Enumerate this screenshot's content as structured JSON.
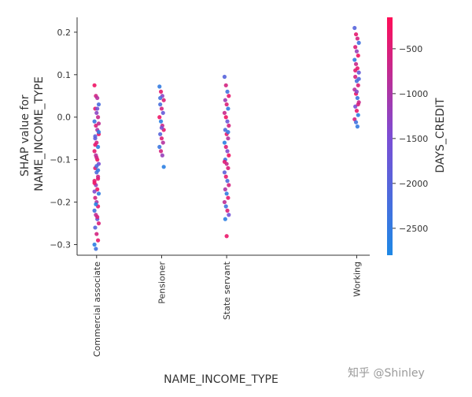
{
  "chart_data": {
    "type": "scatter",
    "title": "",
    "xlabel": "NAME_INCOME_TYPE",
    "ylabel_lines": [
      "SHAP value for",
      "NAME_INCOME_TYPE"
    ],
    "categories": [
      "Commercial associate",
      "Pensioner",
      "State servant",
      "Working"
    ],
    "category_positions": [
      0,
      1,
      2,
      4
    ],
    "xlim": [
      -0.3,
      4.2
    ],
    "ylim": [
      -0.325,
      0.235
    ],
    "yticks": [
      -0.3,
      -0.2,
      -0.1,
      0.0,
      0.1,
      0.2
    ],
    "ytick_labels": [
      "−0.3",
      "−0.2",
      "−0.1",
      "0.0",
      "0.1",
      "0.2"
    ],
    "grid": false,
    "colorbar": {
      "label": "DAYS_CREDIT",
      "range": [
        -2800,
        -150
      ],
      "ticks": [
        -500,
        -1000,
        -1500,
        -2000,
        -2500
      ],
      "tick_labels": [
        "−500",
        "−1000",
        "−1500",
        "−2000",
        "−2500"
      ],
      "colors": [
        "#1e88e5",
        "#7c4dd4",
        "#ff0d57"
      ]
    },
    "series": [
      {
        "category": "Commercial associate",
        "points": [
          {
            "y": 0.075,
            "c": -300
          },
          {
            "y": 0.05,
            "c": -600
          },
          {
            "y": 0.045,
            "c": -900
          },
          {
            "y": 0.03,
            "c": -2200
          },
          {
            "y": 0.02,
            "c": -400
          },
          {
            "y": 0.01,
            "c": -1300
          },
          {
            "y": 0.0,
            "c": -700
          },
          {
            "y": -0.01,
            "c": -2400
          },
          {
            "y": -0.02,
            "c": -500
          },
          {
            "y": -0.03,
            "c": -1000
          },
          {
            "y": -0.04,
            "c": -300
          },
          {
            "y": -0.05,
            "c": -1800
          },
          {
            "y": -0.06,
            "c": -600
          },
          {
            "y": -0.07,
            "c": -2600
          },
          {
            "y": -0.08,
            "c": -400
          },
          {
            "y": -0.09,
            "c": -900
          },
          {
            "y": -0.1,
            "c": -300
          },
          {
            "y": -0.11,
            "c": -1500
          },
          {
            "y": -0.12,
            "c": -500
          },
          {
            "y": -0.13,
            "c": -2100
          },
          {
            "y": -0.14,
            "c": -700
          },
          {
            "y": -0.15,
            "c": -400
          },
          {
            "y": -0.16,
            "c": -1200
          },
          {
            "y": -0.17,
            "c": -300
          },
          {
            "y": -0.18,
            "c": -2500
          },
          {
            "y": -0.19,
            "c": -600
          },
          {
            "y": -0.2,
            "c": -1000
          },
          {
            "y": -0.21,
            "c": -400
          },
          {
            "y": -0.22,
            "c": -2300
          },
          {
            "y": -0.23,
            "c": -800
          },
          {
            "y": -0.24,
            "c": -1700
          },
          {
            "y": -0.25,
            "c": -500
          },
          {
            "y": -0.26,
            "c": -2000
          },
          {
            "y": -0.275,
            "c": -600
          },
          {
            "y": -0.29,
            "c": -400
          },
          {
            "y": -0.3,
            "c": -2600
          },
          {
            "y": -0.31,
            "c": -2300
          },
          {
            "y": 0.02,
            "c": -1600
          },
          {
            "y": -0.035,
            "c": -2500
          },
          {
            "y": -0.065,
            "c": -350
          },
          {
            "y": -0.115,
            "c": -2200
          },
          {
            "y": -0.145,
            "c": -450
          },
          {
            "y": -0.175,
            "c": -1400
          },
          {
            "y": -0.205,
            "c": -2700
          },
          {
            "y": -0.235,
            "c": -550
          },
          {
            "y": -0.015,
            "c": -800
          },
          {
            "y": -0.045,
            "c": -1900
          },
          {
            "y": -0.095,
            "c": -650
          },
          {
            "y": -0.125,
            "c": -2400
          },
          {
            "y": -0.155,
            "c": -300
          }
        ]
      },
      {
        "category": "Pensioner",
        "points": [
          {
            "y": 0.072,
            "c": -2500
          },
          {
            "y": 0.06,
            "c": -400
          },
          {
            "y": 0.05,
            "c": -1300
          },
          {
            "y": 0.04,
            "c": -500
          },
          {
            "y": 0.03,
            "c": -2200
          },
          {
            "y": 0.02,
            "c": -600
          },
          {
            "y": 0.01,
            "c": -1800
          },
          {
            "y": 0.0,
            "c": -300
          },
          {
            "y": -0.01,
            "c": -2600
          },
          {
            "y": -0.02,
            "c": -700
          },
          {
            "y": -0.03,
            "c": -400
          },
          {
            "y": -0.04,
            "c": -2000
          },
          {
            "y": -0.05,
            "c": -500
          },
          {
            "y": -0.06,
            "c": -900
          },
          {
            "y": -0.07,
            "c": -2400
          },
          {
            "y": -0.08,
            "c": -600
          },
          {
            "y": -0.09,
            "c": -1200
          },
          {
            "y": -0.117,
            "c": -2600
          },
          {
            "y": 0.045,
            "c": -2300
          },
          {
            "y": -0.025,
            "c": -1500
          }
        ]
      },
      {
        "category": "State servant",
        "points": [
          {
            "y": 0.095,
            "c": -2000
          },
          {
            "y": 0.075,
            "c": -600
          },
          {
            "y": 0.06,
            "c": -2300
          },
          {
            "y": 0.05,
            "c": -400
          },
          {
            "y": 0.04,
            "c": -1100
          },
          {
            "y": 0.03,
            "c": -500
          },
          {
            "y": 0.02,
            "c": -2500
          },
          {
            "y": 0.01,
            "c": -700
          },
          {
            "y": 0.0,
            "c": -300
          },
          {
            "y": -0.01,
            "c": -1700
          },
          {
            "y": -0.02,
            "c": -600
          },
          {
            "y": -0.03,
            "c": -2200
          },
          {
            "y": -0.04,
            "c": -400
          },
          {
            "y": -0.05,
            "c": -900
          },
          {
            "y": -0.06,
            "c": -2600
          },
          {
            "y": -0.07,
            "c": -500
          },
          {
            "y": -0.08,
            "c": -1400
          },
          {
            "y": -0.09,
            "c": -300
          },
          {
            "y": -0.1,
            "c": -2400
          },
          {
            "y": -0.11,
            "c": -700
          },
          {
            "y": -0.12,
            "c": -500
          },
          {
            "y": -0.13,
            "c": -1900
          },
          {
            "y": -0.14,
            "c": -400
          },
          {
            "y": -0.15,
            "c": -2100
          },
          {
            "y": -0.16,
            "c": -600
          },
          {
            "y": -0.17,
            "c": -1000
          },
          {
            "y": -0.18,
            "c": -2500
          },
          {
            "y": -0.19,
            "c": -400
          },
          {
            "y": -0.2,
            "c": -800
          },
          {
            "y": -0.21,
            "c": -2300
          },
          {
            "y": -0.22,
            "c": -500
          },
          {
            "y": -0.23,
            "c": -1600
          },
          {
            "y": -0.24,
            "c": -2600
          },
          {
            "y": -0.28,
            "c": -350
          },
          {
            "y": -0.035,
            "c": -2400
          },
          {
            "y": -0.105,
            "c": -450
          }
        ]
      },
      {
        "category": "Working",
        "points": [
          {
            "y": 0.21,
            "c": -2000
          },
          {
            "y": 0.195,
            "c": -400
          },
          {
            "y": 0.185,
            "c": -600
          },
          {
            "y": 0.175,
            "c": -2300
          },
          {
            "y": 0.165,
            "c": -500
          },
          {
            "y": 0.155,
            "c": -1200
          },
          {
            "y": 0.145,
            "c": -300
          },
          {
            "y": 0.135,
            "c": -2500
          },
          {
            "y": 0.125,
            "c": -700
          },
          {
            "y": 0.115,
            "c": -400
          },
          {
            "y": 0.105,
            "c": -1800
          },
          {
            "y": 0.095,
            "c": -600
          },
          {
            "y": 0.085,
            "c": -2200
          },
          {
            "y": 0.075,
            "c": -500
          },
          {
            "y": 0.065,
            "c": -900
          },
          {
            "y": 0.055,
            "c": -300
          },
          {
            "y": 0.045,
            "c": -2400
          },
          {
            "y": 0.035,
            "c": -700
          },
          {
            "y": 0.025,
            "c": -1500
          },
          {
            "y": 0.015,
            "c": -400
          },
          {
            "y": 0.005,
            "c": -2600
          },
          {
            "y": -0.005,
            "c": -600
          },
          {
            "y": -0.012,
            "c": -2300
          },
          {
            "y": -0.022,
            "c": -2500
          },
          {
            "y": 0.09,
            "c": -2100
          },
          {
            "y": 0.11,
            "c": -450
          },
          {
            "y": 0.06,
            "c": -1300
          },
          {
            "y": 0.03,
            "c": -550
          }
        ]
      }
    ]
  },
  "watermark_text": "知乎 @Shinley"
}
